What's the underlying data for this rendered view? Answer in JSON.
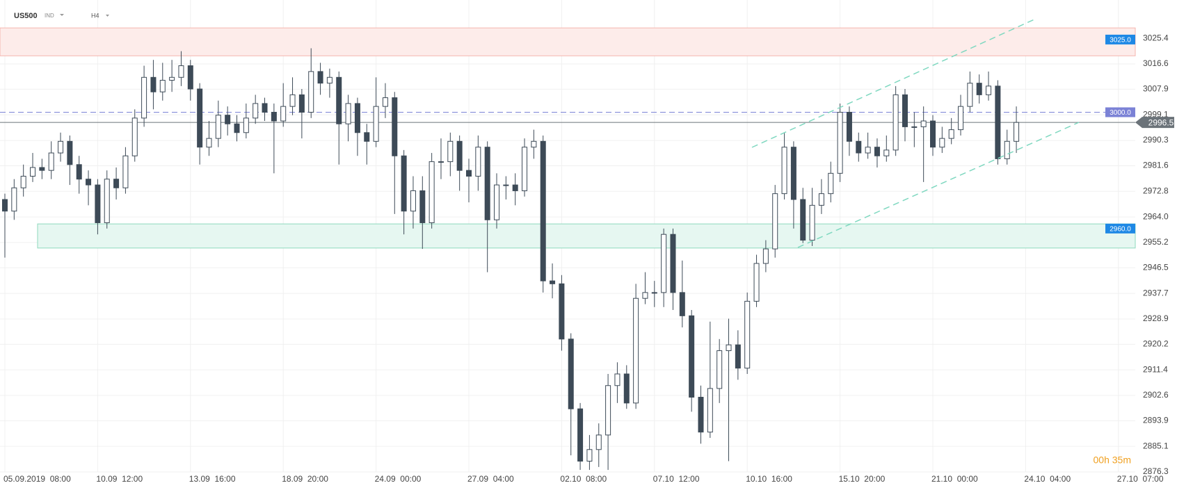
{
  "header": {
    "symbol": "US500",
    "market": "IND",
    "interval": "H4"
  },
  "chart_data": {
    "type": "candlestick",
    "ylim": [
      2876.3,
      3038.6
    ],
    "yticks": [
      3025.4,
      3016.6,
      3007.9,
      2999.1,
      2990.3,
      2981.6,
      2972.8,
      {
        "value": 2964,
        "label": "2964.0"
      },
      2955.2,
      2946.5,
      2937.7,
      2928.9,
      2920.2,
      2911.4,
      2902.6,
      2893.9,
      2885.1,
      2876.3
    ],
    "xticks": [
      {
        "value": 0,
        "label": "05.09.2019  08:00"
      },
      {
        "value": 10,
        "label": "10.09  12:00"
      },
      {
        "value": 20,
        "label": "13.09  16:00"
      },
      {
        "value": 30,
        "label": "18.09  20:00"
      },
      {
        "value": 40,
        "label": "24.09  00:00"
      },
      {
        "value": 50,
        "label": "27.09  04:00"
      },
      {
        "value": 60,
        "label": "02.10  08:00"
      },
      {
        "value": 70,
        "label": "07.10  12:00"
      },
      {
        "value": 80,
        "label": "10.10  16:00"
      },
      {
        "value": 90,
        "label": "15.10  20:00"
      },
      {
        "value": 100,
        "label": "21.10  00:00"
      },
      {
        "value": 110,
        "label": "24.10  04:00"
      },
      {
        "value": 120,
        "label": "27.10  07:00"
      }
    ],
    "grid": true,
    "up_color": "#ffffff",
    "down_color": "#3d4a57",
    "wick_color": "#3d4a57",
    "open": [
      2970,
      2966,
      2974,
      2978,
      2981,
      2980,
      2986,
      2990,
      2982,
      2977,
      2975,
      2962,
      2977,
      2974,
      2985,
      2998,
      3012,
      3007,
      3011,
      3012,
      3016,
      3008,
      2988,
      2991,
      2999,
      2996,
      2993,
      2998,
      3003,
      3000,
      2997,
      3002,
      3006,
      3000,
      3014,
      3010,
      3012,
      2996,
      3003,
      2993,
      2990,
      3002,
      3005,
      2985,
      2966,
      2973,
      2962,
      2983,
      2983,
      2990,
      2980,
      2978,
      2988,
      2963,
      2975,
      2975,
      2973,
      2988,
      2990,
      2942,
      2941,
      2922,
      2898,
      2880,
      2884,
      2889,
      2906,
      2910,
      2900,
      2936,
      2938,
      2938,
      2958,
      2938,
      2930,
      2902,
      2890,
      2905,
      2918,
      2920,
      2912,
      2935,
      2948,
      2953,
      2972,
      2988,
      2970,
      2956,
      2968,
      2972,
      2979,
      3000,
      2990,
      2986,
      2988,
      2985,
      2987,
      3006,
      2995,
      2995,
      2997,
      2988,
      2991,
      2994,
      3002,
      3010,
      3006,
      3009,
      2984,
      2990
    ],
    "high": [
      2972,
      2977,
      2982,
      2986,
      2984,
      2990,
      2993,
      2992,
      2985,
      2980,
      2977,
      2980,
      2981,
      2988,
      3001,
      3016,
      3018,
      3017,
      3018,
      3021,
      3018,
      3010,
      2997,
      3004,
      3002,
      2999,
      3003,
      3006,
      3005,
      3003,
      3010,
      3012,
      3008,
      3022,
      3017,
      3015,
      3014,
      3006,
      3005,
      2996,
      3012,
      3010,
      3007,
      2987,
      2978,
      2978,
      2986,
      2991,
      2993,
      2992,
      2984,
      2992,
      2990,
      2979,
      2978,
      2979,
      2991,
      2994,
      2992,
      2948,
      2944,
      2924,
      2900,
      2889,
      2893,
      2910,
      2914,
      2913,
      2941,
      2945,
      2942,
      2960,
      2960,
      2949,
      2932,
      2906,
      2928,
      2922,
      2929,
      2925,
      2938,
      2951,
      2956,
      2975,
      2993,
      2990,
      2974,
      2974,
      2977,
      2983,
      3003,
      3002,
      2993,
      2993,
      2991,
      2992,
      3009,
      3008,
      3000,
      3002,
      2999,
      2995,
      2998,
      3006,
      3014,
      3013,
      3014,
      3011,
      2994,
      3002
    ],
    "low": [
      2950,
      2963,
      2971,
      2976,
      2977,
      2977,
      2983,
      2975,
      2972,
      2968,
      2958,
      2960,
      2970,
      2972,
      2983,
      2995,
      3001,
      3004,
      3007,
      3009,
      3004,
      2982,
      2985,
      2988,
      2992,
      2990,
      2991,
      2996,
      2997,
      2979,
      2995,
      2999,
      2991,
      2998,
      3006,
      3005,
      2982,
      2990,
      2985,
      2982,
      2988,
      2998,
      2965,
      2958,
      2960,
      2953,
      2960,
      2977,
      2978,
      2973,
      2969,
      2973,
      2945,
      2960,
      2970,
      2968,
      2971,
      2984,
      2938,
      2936,
      2918,
      2882,
      2877,
      2877,
      2878,
      2877,
      2900,
      2898,
      2898,
      2934,
      2933,
      2933,
      2932,
      2926,
      2897,
      2886,
      2888,
      2900,
      2880,
      2908,
      2910,
      2933,
      2945,
      2950,
      2970,
      2960,
      2955,
      2954,
      2965,
      2969,
      2976,
      2985,
      2983,
      2984,
      2981,
      2983,
      2985,
      2990,
      2988,
      2976,
      2985,
      2986,
      2989,
      2992,
      3000,
      3003,
      3004,
      2982,
      2982,
      2986
    ],
    "close": [
      2966,
      2974,
      2978,
      2981,
      2980,
      2986,
      2990,
      2982,
      2977,
      2975,
      2962,
      2977,
      2974,
      2985,
      2998,
      3012,
      3007,
      3011,
      3012,
      3016,
      3008,
      2988,
      2991,
      2999,
      2996,
      2993,
      2998,
      3003,
      3000,
      2997,
      3002,
      3006,
      3000,
      3014,
      3010,
      3012,
      2996,
      3003,
      2993,
      2990,
      3002,
      3005,
      2985,
      2966,
      2973,
      2962,
      2983,
      2983,
      2990,
      2980,
      2978,
      2988,
      2963,
      2975,
      2975,
      2973,
      2988,
      2990,
      2942,
      2941,
      2922,
      2898,
      2880,
      2884,
      2889,
      2906,
      2910,
      2900,
      2936,
      2938,
      2938,
      2958,
      2938,
      2930,
      2902,
      2890,
      2905,
      2918,
      2920,
      2912,
      2935,
      2948,
      2953,
      2972,
      2988,
      2970,
      2956,
      2968,
      2972,
      2979,
      3000,
      2990,
      2986,
      2988,
      2985,
      2987,
      3006,
      2995,
      2995,
      2997,
      2988,
      2991,
      2994,
      3002,
      3010,
      3006,
      3009,
      2984,
      2990,
      2996.5
    ],
    "zones": [
      {
        "level": {
          "value": 3025,
          "label": "3025.0"
        },
        "range": [
          3019.4,
          3029.0
        ],
        "fill": "#fdecea",
        "stroke": "#f5b5ae",
        "label_color": "#1e88e5"
      },
      {
        "level": {
          "value": 2960,
          "label": "2960.0"
        },
        "range": [
          2953.3,
          2961.6
        ],
        "fill": "#e6f7f1",
        "stroke": "#8fd9bd",
        "label_color": "#1e88e5"
      }
    ],
    "lines": [
      {
        "level": {
          "value": 3000,
          "label": "3000.0"
        },
        "color": "#7b82d6",
        "dashed": true
      },
      {
        "level": {
          "value": 2996.5,
          "label": "2996.5"
        },
        "color": "#6b7379",
        "dashed": false,
        "current": true
      }
    ],
    "timer": "00h 35m"
  }
}
